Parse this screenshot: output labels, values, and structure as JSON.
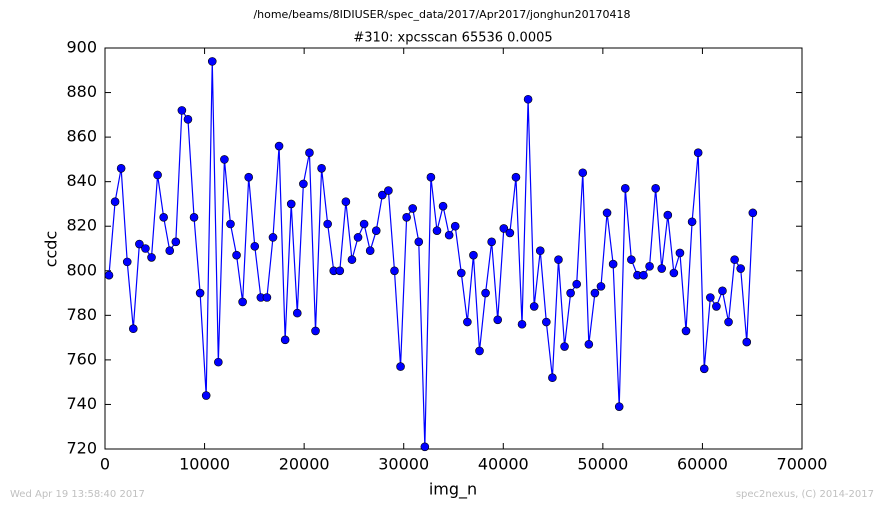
{
  "chart_data": {
    "type": "line",
    "suptitle": "/home/beams/8IDIUSER/spec_data/2017/Apr2017/jonghun20170418",
    "title": "#310: xpcsscan 65536 0.0005",
    "x_label": "img_n",
    "y_label": "ccdc",
    "footer_left": "Wed Apr 19 13:58:40 2017",
    "footer_right": "spec2nexus, (C) 2014-2017",
    "xlim": [
      0,
      70000
    ],
    "ylim": [
      720,
      900
    ],
    "xticks": [
      0,
      10000,
      20000,
      30000,
      40000,
      50000,
      60000,
      70000
    ],
    "yticks": [
      720,
      740,
      760,
      780,
      800,
      820,
      840,
      860,
      880,
      900
    ],
    "grid": false,
    "x": [
      402,
      1012,
      1622,
      2232,
      2842,
      3452,
      4062,
      4672,
      5282,
      5892,
      6502,
      7112,
      7722,
      8332,
      8942,
      9552,
      10162,
      10772,
      11382,
      11992,
      12602,
      13212,
      13822,
      14432,
      15042,
      15652,
      16262,
      16872,
      17482,
      18092,
      18702,
      19312,
      19922,
      20532,
      21142,
      21752,
      22362,
      22972,
      23582,
      24192,
      24802,
      25412,
      26022,
      26632,
      27242,
      27852,
      28462,
      29072,
      29682,
      30292,
      30902,
      31512,
      32122,
      32732,
      33342,
      33952,
      34562,
      35172,
      35782,
      36392,
      37002,
      37612,
      38222,
      38832,
      39442,
      40052,
      40662,
      41272,
      41882,
      42492,
      43102,
      43712,
      44322,
      44932,
      45542,
      46152,
      46762,
      47372,
      47982,
      48592,
      49202,
      49812,
      50422,
      51032,
      51642,
      52252,
      52862,
      53472,
      54082,
      54692,
      55302,
      55912,
      56522,
      57132,
      57742,
      58352,
      58962,
      59572,
      60182,
      60792,
      61402,
      62012,
      62622,
      63232,
      63842,
      64452,
      65062
    ],
    "series": [
      {
        "color": "#0000ff",
        "marker": "circle",
        "values": [
          798,
          831,
          846,
          804,
          774,
          812,
          810,
          806,
          843,
          824,
          809,
          813,
          872,
          868,
          824,
          790,
          744,
          894,
          759,
          850,
          821,
          807,
          786,
          842,
          811,
          788,
          788,
          815,
          856,
          769,
          830,
          781,
          839,
          853,
          773,
          846,
          821,
          800,
          800,
          831,
          805,
          815,
          821,
          809,
          818,
          834,
          836,
          800,
          757,
          824,
          828,
          813,
          721,
          842,
          818,
          829,
          816,
          820,
          799,
          777,
          807,
          764,
          790,
          813,
          778,
          819,
          817,
          842,
          776,
          877,
          784,
          809,
          777,
          752,
          805,
          766,
          790,
          794,
          844,
          767,
          790,
          793,
          826,
          803,
          739,
          837,
          805,
          798,
          798,
          802,
          837,
          801,
          825,
          799,
          808,
          773,
          822,
          853,
          756,
          788,
          784,
          791,
          777,
          805,
          801,
          768,
          826
        ]
      }
    ]
  }
}
